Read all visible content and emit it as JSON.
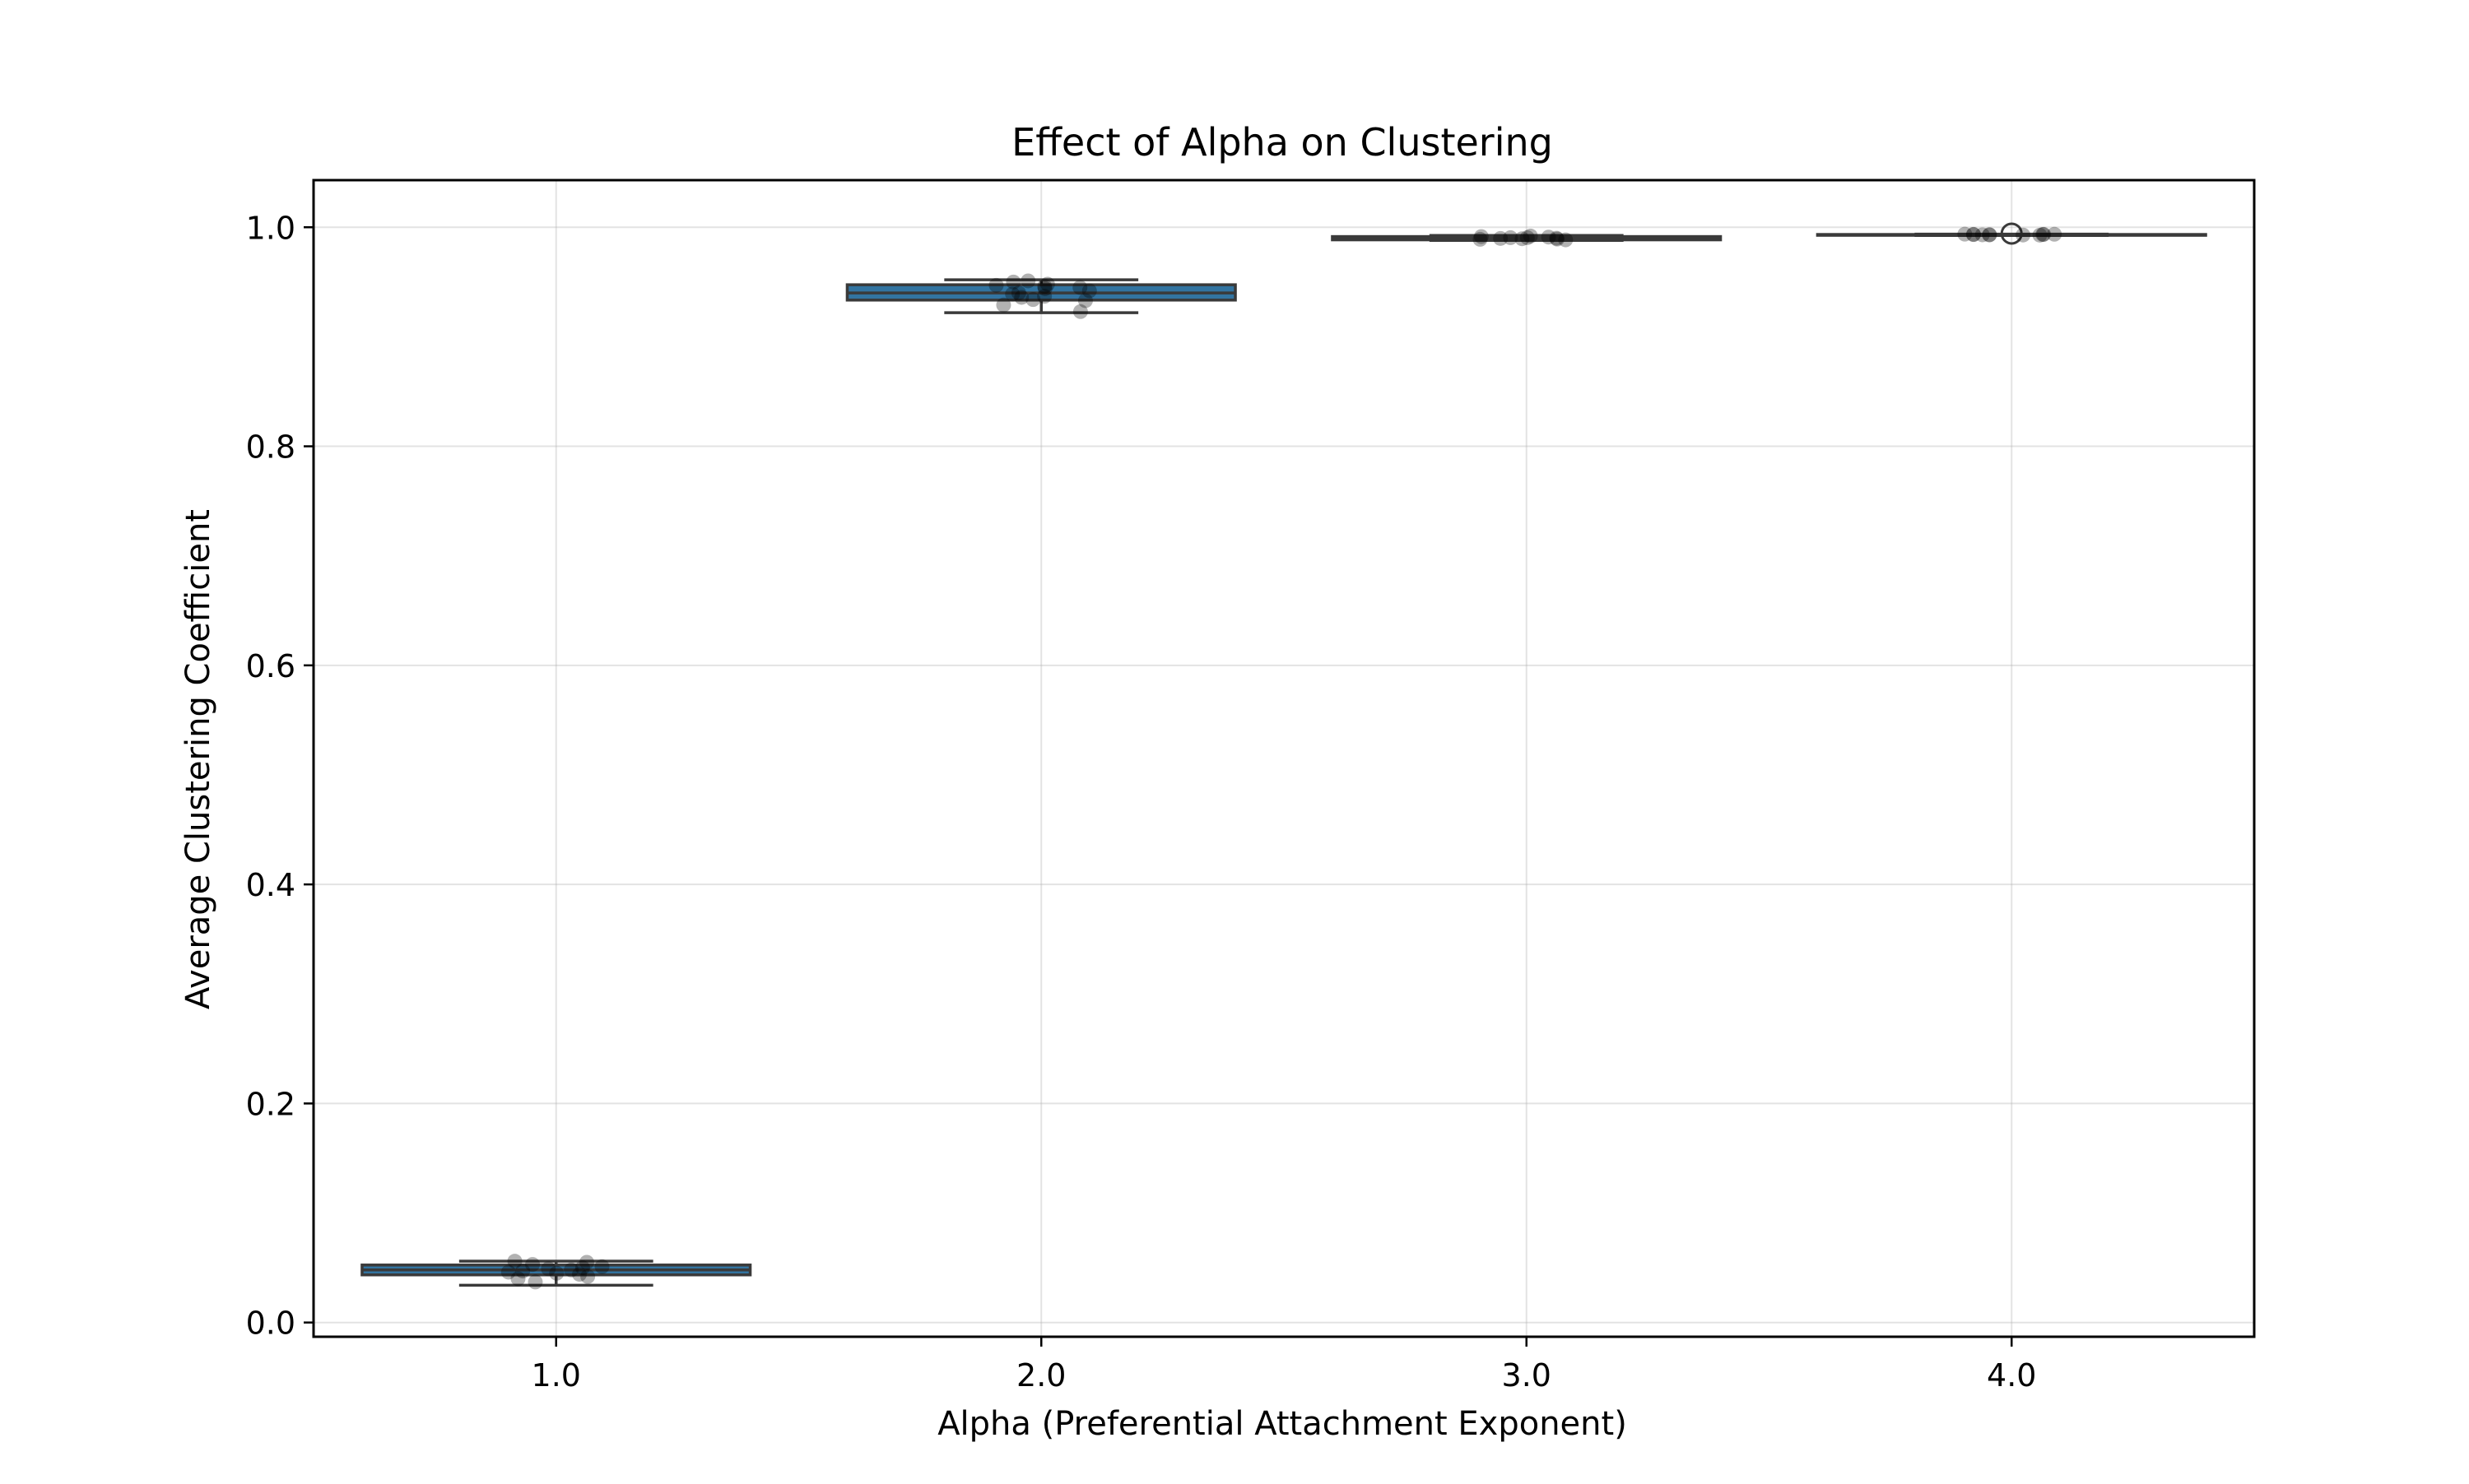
{
  "chart_data": {
    "type": "box",
    "title": "Effect of Alpha on Clustering",
    "xlabel": "Alpha (Preferential Attachment Exponent)",
    "ylabel": "Average Clustering Coefficient",
    "categories": [
      "1.0",
      "2.0",
      "3.0",
      "4.0"
    ],
    "ylim": [
      -0.013,
      1.043
    ],
    "yticks": [
      0.0,
      0.2,
      0.4,
      0.6,
      0.8,
      1.0
    ],
    "ytick_labels": [
      "0.0",
      "0.2",
      "0.4",
      "0.6",
      "0.8",
      "1.0"
    ],
    "grid": true,
    "box_color": "#3274a1",
    "box_edge_color": "#3a3a3a",
    "point_color": "#000000",
    "boxes": [
      {
        "category": "1.0",
        "whisker_low": 0.034,
        "q1": 0.0435,
        "median": 0.048,
        "q3": 0.0525,
        "whisker_high": 0.056,
        "outliers": [],
        "points": [
          0.044,
          0.056,
          0.049,
          0.042,
          0.047,
          0.055,
          0.04,
          0.051,
          0.037,
          0.05,
          0.046,
          0.053,
          0.048,
          0.045
        ]
      },
      {
        "category": "2.0",
        "whisker_low": 0.922,
        "q1": 0.9335,
        "median": 0.94,
        "q3": 0.9475,
        "whisker_high": 0.952,
        "outliers": [],
        "points": [
          0.948,
          0.951,
          0.936,
          0.944,
          0.929,
          0.947,
          0.923,
          0.939,
          0.934,
          0.942,
          0.95,
          0.937,
          0.933,
          0.945,
          0.94,
          0.946
        ]
      },
      {
        "category": "3.0",
        "whisker_low": 0.988,
        "q1": 0.9885,
        "median": 0.99,
        "q3": 0.9915,
        "whisker_high": 0.9925,
        "outliers": [],
        "points": [
          0.9895,
          0.9905,
          0.9885,
          0.9915,
          0.99,
          0.989,
          0.992,
          0.9898,
          0.9905,
          0.9892,
          0.991
        ]
      },
      {
        "category": "4.0",
        "whisker_low": 0.9925,
        "q1": 0.9928,
        "median": 0.993,
        "q3": 0.9934,
        "whisker_high": 0.9937,
        "outliers": [
          0.9942
        ],
        "points": [
          0.9932,
          0.9936,
          0.9929,
          0.9935,
          0.9931,
          0.9934,
          0.9928,
          0.9937,
          0.9933,
          0.993,
          0.9935
        ]
      }
    ]
  }
}
